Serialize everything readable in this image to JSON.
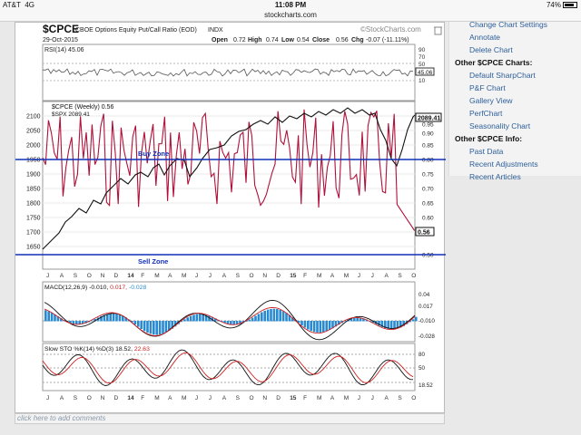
{
  "status_bar": {
    "carrier": "AT&T",
    "network": "4G",
    "time": "11:08 PM",
    "battery": "74%"
  },
  "url": "stockcharts.com",
  "chart": {
    "symbol": "$CPCE",
    "name": "CBOE Options Equity Put/Call Ratio (EOD)",
    "exchange": "INDX",
    "date": "29-Oct-2015",
    "brand": "©StockCharts.com",
    "ohlc": {
      "open_label": "Open",
      "open": "0.72",
      "high_label": "High",
      "high": "0.74",
      "low_label": "Low",
      "low": "0.54",
      "close_label": "Close",
      "close": "0.56",
      "chg_label": "Chg",
      "chg": "-0.07 (-11.11%)"
    },
    "rsi": {
      "label": "RSI(14) 45.06",
      "value": "45.06",
      "ticks": [
        "90",
        "70",
        "50",
        "30",
        "10"
      ]
    },
    "main_legend": {
      "series1": "$CPCE (Weekly) 0.56",
      "series2": "$SPX 2089.41"
    },
    "left_ticks": [
      "2100",
      "2050",
      "2000",
      "1950",
      "1900",
      "1850",
      "1800",
      "1750",
      "1700",
      "1650"
    ],
    "right_ticks": [
      "1.00",
      "0.95",
      "0.90",
      "0.85",
      "0.80",
      "0.75",
      "0.70",
      "0.65",
      "0.60",
      "0.55",
      "0.50"
    ],
    "spx_value_tag": "2089.41",
    "cpce_value_tag": "0.56",
    "buy_zone": "Buy Zone",
    "sell_zone": "Sell Zone",
    "month_labels_1": [
      "J",
      "A",
      "S",
      "O",
      "N",
      "D",
      "14",
      "F",
      "M",
      "A",
      "M",
      "J",
      "J",
      "A",
      "S",
      "O",
      "N",
      "D",
      "15",
      "F",
      "M",
      "A",
      "M",
      "J",
      "J",
      "A",
      "S",
      "O"
    ],
    "macd": {
      "label_prefix": "MACD(12,26,9)",
      "v1": "-0.010,",
      "v2": "0.017,",
      "v3": "-0.028",
      "ticks": [
        "0.04",
        "0.017",
        "-0.010",
        "-0.028"
      ]
    },
    "sto": {
      "label_prefix": "Slow STO %K(14) %D(3)",
      "v1": "18.52,",
      "v2": "22.63",
      "ticks": [
        "80",
        "50",
        "18.52"
      ]
    },
    "month_labels_2": [
      "J",
      "A",
      "S",
      "O",
      "N",
      "D",
      "14",
      "F",
      "M",
      "A",
      "M",
      "J",
      "J",
      "A",
      "S",
      "O",
      "N",
      "D",
      "15",
      "F",
      "M",
      "A",
      "M",
      "J",
      "J",
      "A",
      "S",
      "O"
    ],
    "colors": {
      "spx": "#111111",
      "cpce": "#b0103a",
      "zone": "#1030b8",
      "macd_hist": "#2a8ad0"
    }
  },
  "sidebar": {
    "items": [
      {
        "type": "link",
        "label": "Change Chart Settings"
      },
      {
        "type": "link",
        "label": "Annotate"
      },
      {
        "type": "link",
        "label": "Delete Chart"
      },
      {
        "type": "head",
        "label": "Other $CPCE Charts:"
      },
      {
        "type": "link",
        "label": "Default SharpChart"
      },
      {
        "type": "link",
        "label": "P&F Chart"
      },
      {
        "type": "link",
        "label": "Gallery View"
      },
      {
        "type": "link",
        "label": "PerfChart"
      },
      {
        "type": "link",
        "label": "Seasonality Chart"
      },
      {
        "type": "head",
        "label": "Other $CPCE Info:"
      },
      {
        "type": "link",
        "label": "Past Data"
      },
      {
        "type": "link",
        "label": "Recent Adjustments"
      },
      {
        "type": "link",
        "label": "Recent Articles"
      }
    ]
  },
  "footer": {
    "comment_prompt": "click here to add comments"
  }
}
